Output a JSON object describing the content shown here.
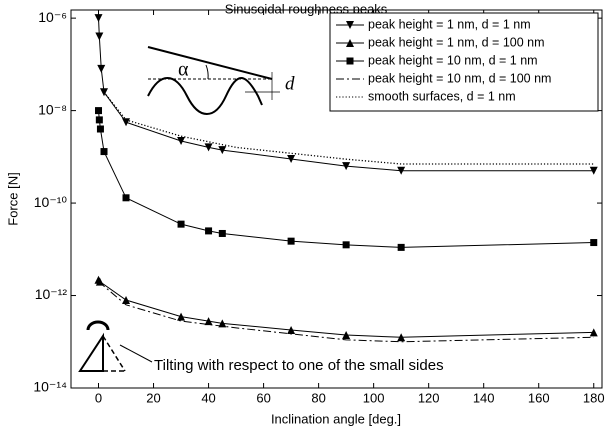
{
  "chart_data": {
    "type": "line",
    "title": "Sinusoidal roughness peaks",
    "x_label": "Inclination angle [deg.]",
    "y_label": "Force [N]",
    "xlim": [
      -10,
      183
    ],
    "xticks": [
      0,
      20,
      40,
      60,
      80,
      100,
      120,
      140,
      160,
      180
    ],
    "ylim": [
      1e-14,
      1.5e-06
    ],
    "y_log": true,
    "yticks": [
      {
        "value": 1e-14,
        "label": "10⁻¹⁴"
      },
      {
        "value": 1e-12,
        "label": "10⁻¹²"
      },
      {
        "value": 1e-10,
        "label": "10⁻¹⁰"
      },
      {
        "value": 1e-08,
        "label": "10⁻⁸"
      },
      {
        "value": 1e-06,
        "label": "10⁻⁶"
      }
    ],
    "legend": "top-right",
    "annotation": "Tilting with respect to one of the small sides",
    "inset_angle_label": "α",
    "inset_d_label": "d",
    "series": [
      {
        "name": "peak height = 1 nm, d = 1 nm",
        "color": "#000",
        "marker": "triangle-down",
        "dash": "solid",
        "x": [
          0,
          0.3,
          1,
          2,
          10,
          30,
          40,
          45,
          70,
          90,
          110,
          180
        ],
        "values": [
          1e-06,
          4e-07,
          8e-08,
          2.5e-08,
          5.6e-09,
          2.2e-09,
          1.6e-09,
          1.4e-09,
          9e-10,
          6.3e-10,
          5e-10,
          5e-10
        ]
      },
      {
        "name": "peak height = 1 nm, d = 100 nm",
        "color": "#000",
        "marker": "triangle-up",
        "dash": "solid",
        "x": [
          0,
          0.5,
          10,
          30,
          40,
          45,
          70,
          90,
          110,
          180
        ],
        "values": [
          2.2e-12,
          2e-12,
          8e-13,
          3.5e-13,
          2.8e-13,
          2.5e-13,
          1.8e-13,
          1.4e-13,
          1.25e-13,
          1.6e-13
        ]
      },
      {
        "name": "peak height = 10 nm, d = 1 nm",
        "color": "#000",
        "marker": "square",
        "dash": "solid",
        "x": [
          0,
          0.3,
          0.7,
          2,
          10,
          30,
          40,
          45,
          70,
          90,
          110,
          180
        ],
        "values": [
          1e-08,
          6.3e-09,
          4e-09,
          1.3e-09,
          1.3e-10,
          3.5e-11,
          2.5e-11,
          2.2e-11,
          1.5e-11,
          1.25e-11,
          1.1e-11,
          1.4e-11
        ]
      },
      {
        "name": "peak height = 10 nm, d = 100 nm",
        "color": "#000",
        "marker": "none",
        "dash": "dashdot",
        "x": [
          0,
          10,
          30,
          50,
          90,
          110,
          180
        ],
        "values": [
          2e-12,
          6.3e-13,
          2.8e-13,
          2e-13,
          1.1e-13,
          1e-13,
          1.25e-13
        ]
      },
      {
        "name": "smooth surfaces, d = 1 nm",
        "color": "#000",
        "marker": "none",
        "dash": "dotted",
        "x": [
          2,
          10,
          30,
          50,
          90,
          110,
          180
        ],
        "values": [
          2.5e-08,
          6.3e-09,
          2.8e-09,
          1.6e-09,
          8.9e-10,
          7e-10,
          7e-10
        ]
      }
    ]
  }
}
